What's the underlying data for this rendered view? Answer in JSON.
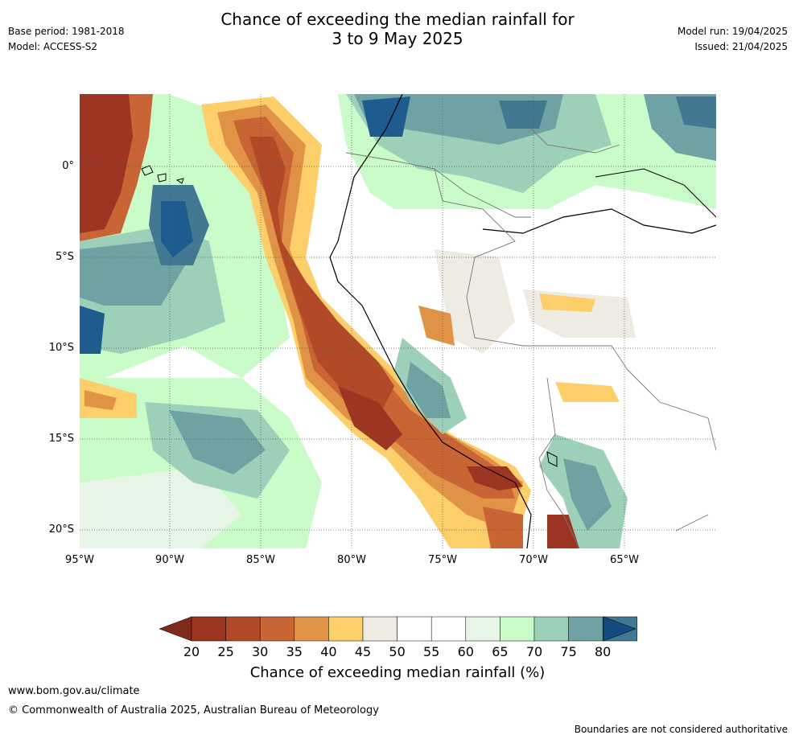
{
  "title_line1": "Chance of exceeding the median rainfall for",
  "title_line2": "3 to 9 May 2025",
  "base_period": "Base period: 1981-2018",
  "model": "Model: ACCESS-S2",
  "model_run": "Model run: 19/04/2025",
  "issued": "Issued: 21/04/2025",
  "lon_labels": [
    "95°W",
    "90°W",
    "85°W",
    "80°W",
    "75°W",
    "70°W",
    "65°W"
  ],
  "lat_labels": [
    "0°",
    "5°S",
    "10°S",
    "15°S",
    "20°S"
  ],
  "colorbar": {
    "ticks": [
      "20",
      "25",
      "30",
      "35",
      "40",
      "45",
      "50",
      "55",
      "60",
      "65",
      "70",
      "75",
      "80"
    ],
    "colors": [
      "#9c3521",
      "#b24a28",
      "#c96434",
      "#e09247",
      "#fdcf6b",
      "#eeebe3",
      "#ffffff",
      "#ffffff",
      "#e6f5e6",
      "#c9fcc9",
      "#9dd0b9",
      "#6fa3a3",
      "#427891"
    ],
    "low_color": "#7f2a1c",
    "high_color": "#154b80",
    "label": "Chance of exceeding median rainfall (%)"
  },
  "footer_url": "www.bom.gov.au/climate",
  "copyright": "© Commonwealth of Australia 2025, Australian Bureau of Meteorology",
  "disclaimer": "Boundaries are not considered authoritative"
}
